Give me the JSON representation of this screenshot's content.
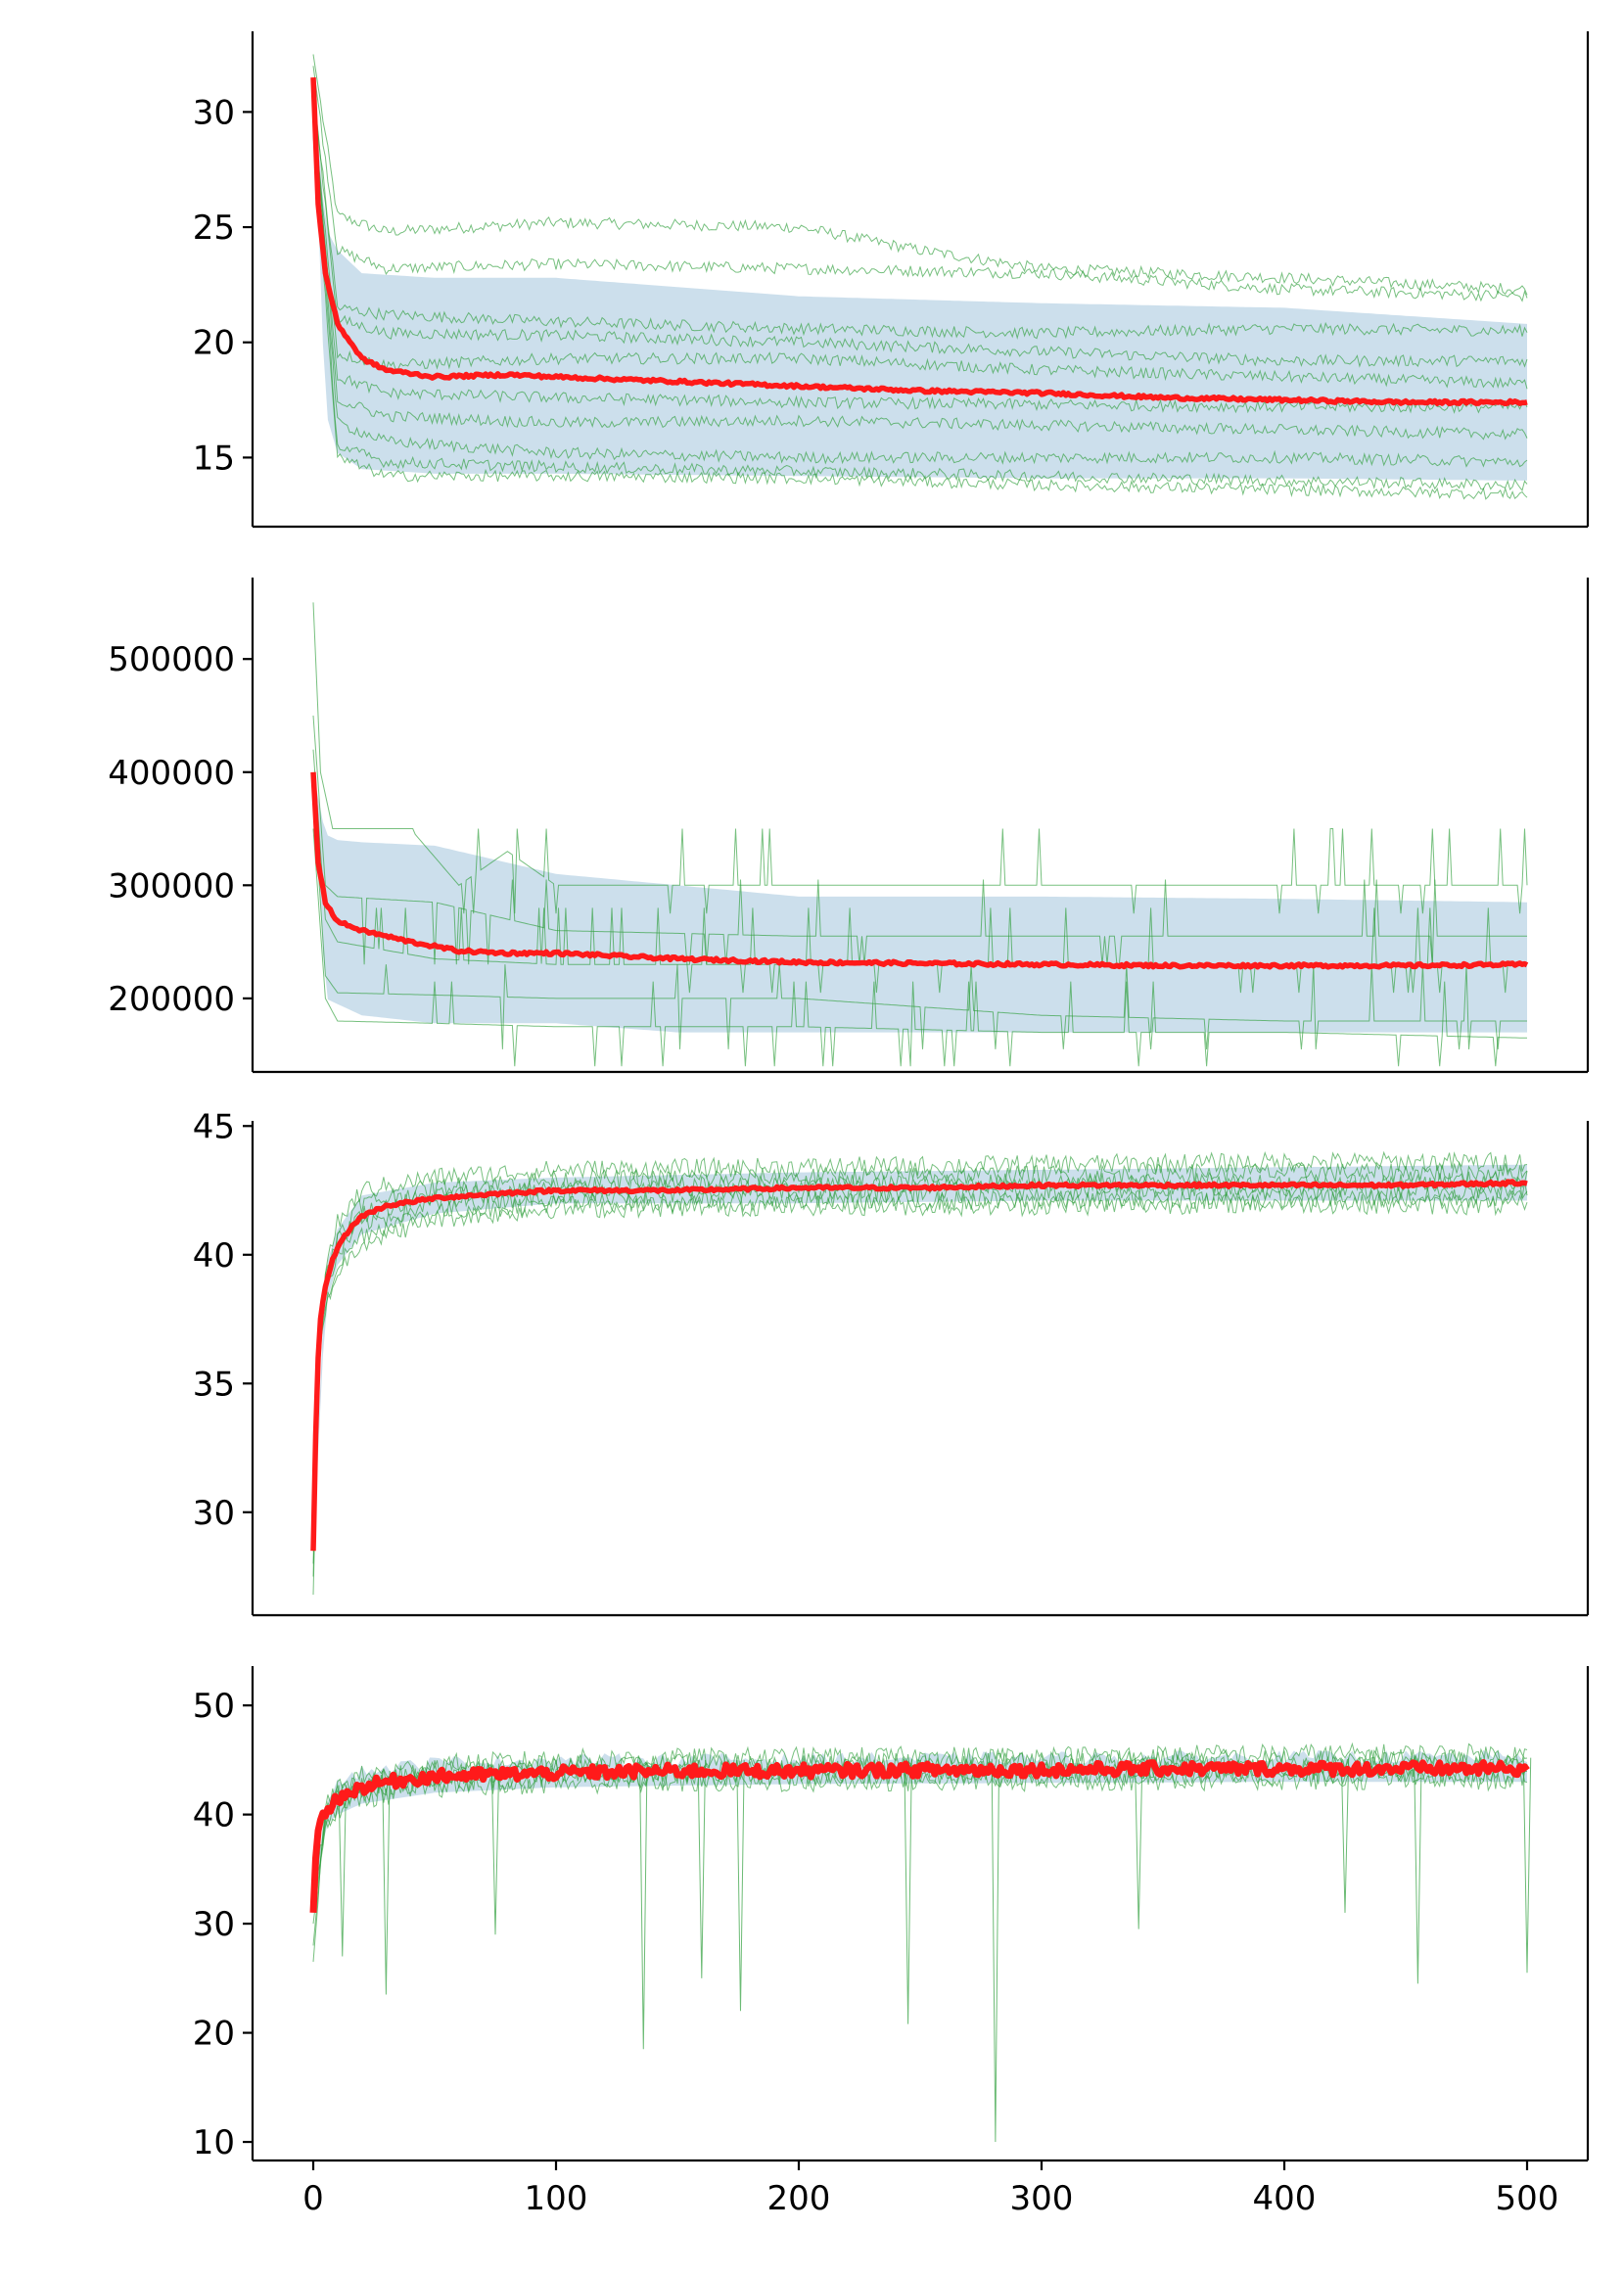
{
  "figure": {
    "colors": {
      "mean_line": "#ff1a1a",
      "individual_runs": "#2e9e3a",
      "spread_band": "#c7dbea",
      "axes": "#000000",
      "background": "#ffffff"
    },
    "shared_x_ticks": [
      "0",
      "100",
      "200",
      "300",
      "400",
      "500"
    ]
  },
  "chart_data": [
    {
      "type": "line",
      "panel": 1,
      "title": "",
      "xlabel": "",
      "ylabel": "",
      "xlim": [
        -25,
        525
      ],
      "ylim": [
        12,
        33.5
      ],
      "grid": false,
      "legend": "none",
      "x_tick_labels_shown": false,
      "y_ticks": [
        15,
        20,
        25,
        30
      ],
      "y_tick_labels": [
        "15",
        "20",
        "25",
        "30"
      ],
      "mean_series": {
        "x": [
          0,
          2,
          5,
          10,
          20,
          30,
          50,
          80,
          100,
          150,
          200,
          250,
          300,
          350,
          400,
          450,
          500
        ],
        "y": [
          31.5,
          26.0,
          23.0,
          20.8,
          19.3,
          18.8,
          18.5,
          18.6,
          18.5,
          18.3,
          18.1,
          17.9,
          17.8,
          17.6,
          17.5,
          17.4,
          17.4
        ]
      },
      "band": {
        "x": [
          0,
          5,
          10,
          20,
          50,
          100,
          200,
          300,
          400,
          500
        ],
        "upper": [
          31.5,
          25.0,
          24.0,
          23.0,
          22.8,
          22.8,
          22.0,
          21.7,
          21.5,
          20.8
        ],
        "lower": [
          31.5,
          17.0,
          15.2,
          14.5,
          14.3,
          14.3,
          14.2,
          14.1,
          14.1,
          14.0
        ]
      },
      "individual_runs": [
        {
          "x": [
            0,
            10,
            30,
            100,
            200,
            250,
            300,
            350,
            400,
            500
          ],
          "y": [
            32.5,
            25.5,
            24.8,
            25.2,
            25.0,
            24.0,
            23.2,
            23.0,
            22.8,
            22.3
          ]
        },
        {
          "x": [
            0,
            10,
            30,
            100,
            200,
            300,
            400,
            500
          ],
          "y": [
            32.0,
            24.0,
            23.2,
            23.4,
            23.2,
            23.0,
            22.3,
            22.0
          ]
        },
        {
          "x": [
            0,
            10,
            30,
            100,
            200,
            300,
            400,
            500
          ],
          "y": [
            31.0,
            21.5,
            21.2,
            20.9,
            20.6,
            20.4,
            20.6,
            20.5
          ]
        },
        {
          "x": [
            0,
            10,
            30,
            100,
            200,
            300,
            400,
            500
          ],
          "y": [
            31.0,
            21.0,
            20.4,
            20.3,
            20.0,
            19.6,
            19.2,
            19.2
          ]
        },
        {
          "x": [
            0,
            10,
            30,
            100,
            200,
            300,
            400,
            500
          ],
          "y": [
            30.0,
            19.5,
            19.0,
            19.3,
            19.3,
            18.8,
            18.5,
            18.2
          ]
        },
        {
          "x": [
            0,
            10,
            30,
            100,
            200,
            300,
            400,
            500
          ],
          "y": [
            30.0,
            18.5,
            17.8,
            17.6,
            17.4,
            17.3,
            17.2,
            17.2
          ]
        },
        {
          "x": [
            0,
            10,
            30,
            100,
            200,
            300,
            400,
            500
          ],
          "y": [
            30.5,
            17.5,
            16.8,
            16.5,
            16.6,
            16.4,
            16.2,
            16.0
          ]
        },
        {
          "x": [
            0,
            10,
            30,
            100,
            200,
            300,
            400,
            500
          ],
          "y": [
            30.0,
            16.5,
            15.7,
            15.2,
            15.0,
            15.0,
            15.0,
            14.8
          ]
        },
        {
          "x": [
            0,
            10,
            30,
            100,
            200,
            300,
            400,
            500
          ],
          "y": [
            29.5,
            15.5,
            14.8,
            14.6,
            14.4,
            14.2,
            14.0,
            13.8
          ]
        },
        {
          "x": [
            0,
            10,
            30,
            100,
            200,
            300,
            400,
            500
          ],
          "y": [
            29.0,
            15.0,
            14.2,
            14.2,
            14.1,
            13.8,
            13.6,
            13.4
          ]
        }
      ]
    },
    {
      "type": "line",
      "panel": 2,
      "title": "",
      "xlabel": "",
      "ylabel": "",
      "xlim": [
        -25,
        525
      ],
      "ylim": [
        135000,
        572000
      ],
      "grid": false,
      "legend": "none",
      "x_tick_labels_shown": false,
      "y_ticks": [
        200000,
        300000,
        400000,
        500000
      ],
      "y_tick_labels": [
        "200000",
        "300000",
        "400000",
        "500000"
      ],
      "mean_series": {
        "x": [
          0,
          2,
          5,
          10,
          20,
          40,
          60,
          80,
          100,
          150,
          200,
          250,
          300,
          350,
          400,
          450,
          500
        ],
        "y": [
          400000,
          320000,
          285000,
          268000,
          260000,
          250000,
          242000,
          240000,
          240000,
          235000,
          232000,
          231000,
          230000,
          229000,
          229000,
          229000,
          230000
        ]
      },
      "band": {
        "x": [
          0,
          5,
          10,
          20,
          50,
          100,
          150,
          200,
          300,
          400,
          500
        ],
        "upper": [
          400000,
          345000,
          340000,
          338000,
          335000,
          310000,
          300000,
          290000,
          290000,
          288000,
          285000
        ],
        "lower": [
          400000,
          200000,
          195000,
          185000,
          178000,
          178000,
          170000,
          170000,
          170000,
          170000,
          170000
        ]
      },
      "individual_runs": [
        {
          "x": [
            0,
            3,
            8,
            20,
            40,
            60,
            80,
            100,
            200,
            300,
            400,
            500
          ],
          "y": [
            550000,
            400000,
            350000,
            350000,
            350000,
            300000,
            330000,
            300000,
            300000,
            300000,
            300000,
            300000
          ]
        },
        {
          "x": [
            0,
            5,
            10,
            50,
            100,
            200,
            300,
            400,
            500
          ],
          "y": [
            450000,
            300000,
            290000,
            285000,
            260000,
            255000,
            255000,
            255000,
            255000
          ]
        },
        {
          "x": [
            0,
            5,
            10,
            50,
            100,
            200,
            300,
            400,
            500
          ],
          "y": [
            420000,
            270000,
            250000,
            235000,
            230000,
            230000,
            230000,
            230000,
            230000
          ]
        },
        {
          "x": [
            0,
            5,
            10,
            50,
            100,
            200,
            300,
            400,
            500
          ],
          "y": [
            380000,
            220000,
            205000,
            203000,
            200000,
            200000,
            185000,
            180000,
            180000
          ]
        },
        {
          "x": [
            0,
            5,
            10,
            50,
            100,
            200,
            300,
            400,
            500
          ],
          "y": [
            350000,
            200000,
            180000,
            178000,
            175000,
            175000,
            170000,
            170000,
            165000
          ]
        }
      ]
    },
    {
      "type": "line",
      "panel": 3,
      "title": "",
      "xlabel": "",
      "ylabel": "",
      "xlim": [
        -25,
        525
      ],
      "ylim": [
        26,
        45.2
      ],
      "grid": false,
      "legend": "none",
      "x_tick_labels_shown": false,
      "y_ticks": [
        30,
        35,
        40,
        45
      ],
      "y_tick_labels": [
        "30",
        "35",
        "40",
        "45"
      ],
      "mean_series": {
        "x": [
          0,
          1,
          2,
          3,
          5,
          8,
          10,
          15,
          20,
          30,
          50,
          80,
          100,
          150,
          200,
          250,
          300,
          350,
          400,
          450,
          500
        ],
        "y": [
          28.5,
          33.0,
          36.0,
          37.5,
          38.8,
          39.8,
          40.3,
          41.0,
          41.5,
          41.9,
          42.2,
          42.4,
          42.5,
          42.5,
          42.6,
          42.6,
          42.7,
          42.7,
          42.7,
          42.7,
          42.8
        ]
      },
      "band": {
        "x": [
          0,
          5,
          10,
          20,
          50,
          100,
          200,
          300,
          400,
          500
        ],
        "upper": [
          28.5,
          39.5,
          41.0,
          42.3,
          42.8,
          43.0,
          43.2,
          43.3,
          43.4,
          43.5
        ],
        "lower": [
          28.5,
          38.0,
          39.6,
          40.8,
          41.6,
          42.0,
          42.0,
          42.1,
          42.1,
          42.1
        ]
      },
      "individual_runs": [
        {
          "x": [
            0,
            2,
            5,
            10,
            20,
            50,
            100,
            200,
            300,
            400,
            500
          ],
          "y": [
            26.8,
            35.0,
            39.5,
            41.2,
            42.5,
            43.0,
            43.3,
            43.4,
            43.5,
            43.6,
            43.6
          ]
        },
        {
          "x": [
            0,
            2,
            5,
            10,
            20,
            50,
            100,
            200,
            300,
            400,
            500
          ],
          "y": [
            27.5,
            35.5,
            39.0,
            40.8,
            42.0,
            42.6,
            42.9,
            43.0,
            43.1,
            43.2,
            43.2
          ]
        },
        {
          "x": [
            0,
            2,
            5,
            10,
            20,
            50,
            100,
            200,
            300,
            400,
            500
          ],
          "y": [
            28.0,
            36.0,
            38.8,
            40.5,
            41.6,
            42.3,
            42.6,
            42.7,
            42.8,
            42.8,
            42.9
          ]
        },
        {
          "x": [
            0,
            2,
            5,
            10,
            20,
            50,
            100,
            200,
            300,
            400,
            500
          ],
          "y": [
            28.5,
            36.5,
            38.5,
            40.0,
            41.2,
            42.0,
            42.3,
            42.4,
            42.5,
            42.5,
            42.5
          ]
        },
        {
          "x": [
            0,
            2,
            5,
            10,
            20,
            50,
            100,
            200,
            300,
            400,
            500
          ],
          "y": [
            29.0,
            36.0,
            38.2,
            39.6,
            40.8,
            41.7,
            42.0,
            42.1,
            42.1,
            42.2,
            42.2
          ]
        },
        {
          "x": [
            0,
            2,
            5,
            10,
            20,
            50,
            100,
            200,
            300,
            400,
            500
          ],
          "y": [
            28.8,
            35.8,
            38.0,
            39.3,
            40.5,
            41.4,
            41.8,
            41.9,
            41.9,
            42.0,
            41.9
          ]
        }
      ]
    },
    {
      "type": "line",
      "panel": 4,
      "title": "",
      "xlabel": "",
      "ylabel": "",
      "xlim": [
        -25,
        525
      ],
      "ylim": [
        8.3,
        53.6
      ],
      "grid": false,
      "legend": "none",
      "x_ticks": [
        0,
        100,
        200,
        300,
        400,
        500
      ],
      "x_tick_labels": [
        "0",
        "100",
        "200",
        "300",
        "400",
        "500"
      ],
      "y_ticks": [
        10,
        20,
        30,
        40,
        50
      ],
      "y_tick_labels": [
        "10",
        "20",
        "30",
        "40",
        "50"
      ],
      "mean_series": {
        "x": [
          0,
          1,
          2,
          3,
          5,
          8,
          10,
          15,
          20,
          30,
          50,
          80,
          100,
          150,
          200,
          250,
          300,
          350,
          400,
          450,
          500
        ],
        "y": [
          31.0,
          36.0,
          38.5,
          39.5,
          40.3,
          41.0,
          41.5,
          42.0,
          42.5,
          43.0,
          43.5,
          43.7,
          43.8,
          44.0,
          44.0,
          44.1,
          44.1,
          44.2,
          44.2,
          44.2,
          44.2
        ]
      },
      "band": {
        "x": [
          0,
          5,
          10,
          20,
          50,
          100,
          200,
          300,
          400,
          500
        ],
        "upper": [
          31.0,
          41.5,
          43.0,
          44.0,
          44.8,
          45.0,
          45.1,
          45.2,
          45.3,
          45.3
        ],
        "lower": [
          31.0,
          39.0,
          40.0,
          41.0,
          42.0,
          42.5,
          42.8,
          42.9,
          43.0,
          43.0
        ]
      },
      "dips": [
        {
          "x": 136,
          "y": 18.5
        },
        {
          "x": 245,
          "y": 20.8
        },
        {
          "x": 281,
          "y": 10.0
        },
        {
          "x": 160,
          "y": 25.0
        },
        {
          "x": 176,
          "y": 22.0
        },
        {
          "x": 455,
          "y": 24.5
        },
        {
          "x": 30,
          "y": 23.5
        },
        {
          "x": 500,
          "y": 25.5
        },
        {
          "x": 12,
          "y": 27.0
        },
        {
          "x": 75,
          "y": 29.0
        },
        {
          "x": 340,
          "y": 29.5
        },
        {
          "x": 425,
          "y": 31.0
        }
      ],
      "individual_runs": [
        {
          "x": [
            0,
            5,
            10,
            20,
            50,
            100,
            200,
            300,
            400,
            500
          ],
          "y": [
            26.5,
            40.5,
            42.5,
            43.5,
            44.5,
            45.0,
            45.2,
            45.3,
            45.5,
            45.5
          ]
        },
        {
          "x": [
            0,
            5,
            10,
            20,
            50,
            100,
            200,
            300,
            400,
            500
          ],
          "y": [
            28.0,
            40.0,
            42.0,
            43.0,
            44.0,
            44.5,
            44.6,
            44.8,
            45.0,
            45.0
          ]
        },
        {
          "x": [
            0,
            5,
            10,
            20,
            50,
            100,
            200,
            300,
            400,
            500
          ],
          "y": [
            30.0,
            39.5,
            41.5,
            42.5,
            43.5,
            43.9,
            44.0,
            44.2,
            44.3,
            44.4
          ]
        },
        {
          "x": [
            0,
            5,
            10,
            20,
            50,
            100,
            200,
            300,
            400,
            500
          ],
          "y": [
            32.0,
            39.0,
            41.0,
            42.0,
            43.0,
            43.4,
            43.5,
            43.6,
            43.7,
            43.8
          ]
        },
        {
          "x": [
            0,
            5,
            10,
            20,
            50,
            100,
            200,
            300,
            400,
            500
          ],
          "y": [
            33.0,
            38.5,
            40.5,
            41.5,
            42.5,
            42.9,
            43.0,
            43.1,
            43.2,
            43.2
          ]
        }
      ]
    }
  ]
}
